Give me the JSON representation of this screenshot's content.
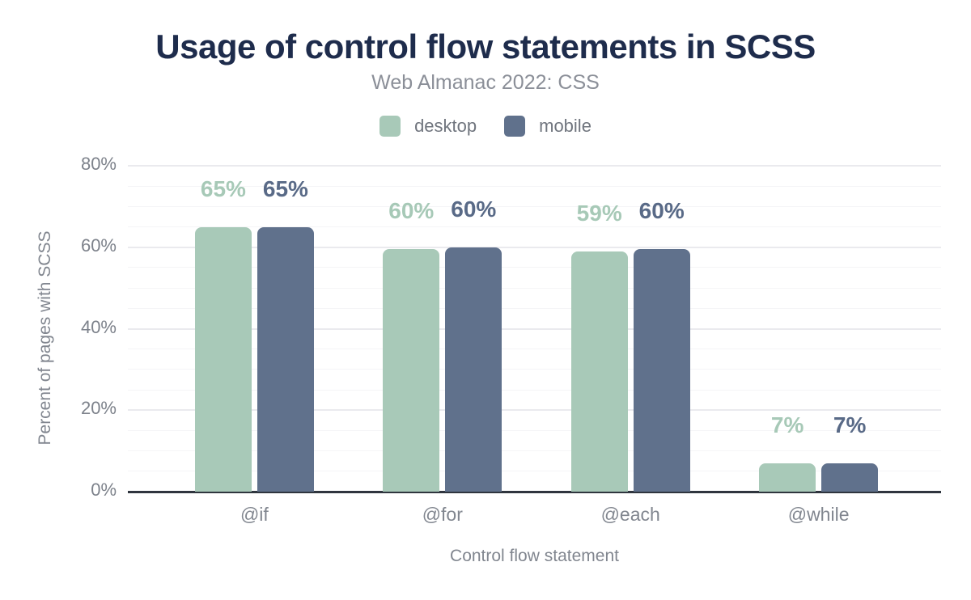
{
  "header": {
    "title": "Usage of control flow statements in SCSS",
    "subtitle": "Web Almanac 2022: CSS"
  },
  "palette": {
    "title_text": "#1e2c4c",
    "subtitle_text": "#8b8f98",
    "legend_text": "#70757e",
    "axis_text": "#81868f",
    "tick_text": "#7d828b",
    "baseline": "#2f353e",
    "grid_major": "#eaeaee",
    "grid_minor": "#f5f5f7",
    "background": "#ffffff"
  },
  "chart_data": {
    "type": "bar",
    "title": "Usage of control flow statements in SCSS",
    "subtitle": "Web Almanac 2022: CSS",
    "categories": [
      "@if",
      "@for",
      "@each",
      "@while"
    ],
    "series": [
      {
        "name": "desktop",
        "color": "#a8c9b8",
        "label_color": "#a7c9b7",
        "values": [
          65,
          59.5,
          59,
          7
        ],
        "labels": [
          "65%",
          "60%",
          "59%",
          "7%"
        ]
      },
      {
        "name": "mobile",
        "color": "#60718c",
        "label_color": "#596a87",
        "values": [
          65,
          60,
          59.5,
          7
        ],
        "labels": [
          "65%",
          "60%",
          "60%",
          "7%"
        ]
      }
    ],
    "xlabel": "Control flow statement",
    "ylabel": "Percent of pages with SCSS",
    "ylim": [
      0,
      80
    ],
    "y_major_step": 20,
    "y_minor_step": 5,
    "y_tick_labels": [
      "0%",
      "20%",
      "40%",
      "60%",
      "80%"
    ],
    "grid": true,
    "legend_position": "top"
  }
}
